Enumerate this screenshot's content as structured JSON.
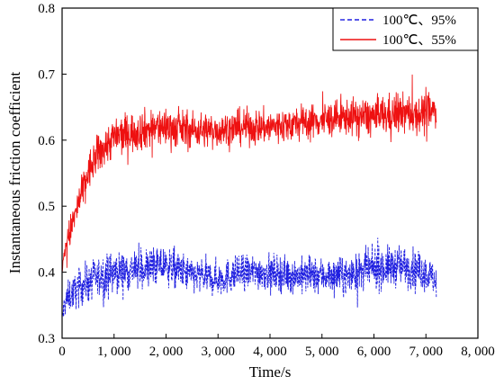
{
  "chart_data": {
    "type": "line",
    "xlabel": "Time/s",
    "ylabel": "Instantaneous friction coefficient",
    "xlim": [
      0,
      8000
    ],
    "ylim": [
      0.3,
      0.8
    ],
    "x_ticks": [
      "0",
      "1, 000",
      "2, 000",
      "3, 000",
      "4, 000",
      "5, 000",
      "6, 000",
      "7, 000",
      "8, 000"
    ],
    "y_ticks": [
      "0.3",
      "0.4",
      "0.5",
      "0.6",
      "0.7",
      "0.8"
    ],
    "grid": false,
    "legend_position": "top-right",
    "series": [
      {
        "name": "100℃、95%",
        "color": "#1f1fe0",
        "line_style": "dashed",
        "x": [
          0,
          60,
          150,
          300,
          500,
          800,
          1000,
          1500,
          2000,
          2500,
          3000,
          3500,
          4000,
          4500,
          5000,
          5500,
          6000,
          6500,
          7000,
          7200
        ],
        "y": [
          0.33,
          0.355,
          0.365,
          0.375,
          0.385,
          0.395,
          0.4,
          0.405,
          0.41,
          0.395,
          0.39,
          0.4,
          0.4,
          0.395,
          0.395,
          0.395,
          0.405,
          0.41,
          0.4,
          0.385
        ],
        "noise": [
          0.015,
          0.02,
          0.02,
          0.022,
          0.025,
          0.025,
          0.025,
          0.025,
          0.025,
          0.022,
          0.022,
          0.022,
          0.022,
          0.022,
          0.022,
          0.022,
          0.025,
          0.025,
          0.022,
          0.02
        ]
      },
      {
        "name": "100℃、55%",
        "color": "#ee1111",
        "line_style": "solid",
        "x": [
          0,
          60,
          150,
          300,
          500,
          700,
          1000,
          1500,
          2000,
          2500,
          3000,
          3500,
          4000,
          4500,
          5000,
          5500,
          6000,
          6500,
          7000,
          7200
        ],
        "y": [
          0.4,
          0.44,
          0.46,
          0.5,
          0.55,
          0.58,
          0.605,
          0.615,
          0.62,
          0.615,
          0.615,
          0.62,
          0.62,
          0.625,
          0.63,
          0.635,
          0.635,
          0.64,
          0.64,
          0.645
        ],
        "noise": [
          0.01,
          0.015,
          0.02,
          0.022,
          0.025,
          0.025,
          0.025,
          0.025,
          0.025,
          0.022,
          0.022,
          0.022,
          0.022,
          0.022,
          0.022,
          0.022,
          0.025,
          0.025,
          0.025,
          0.022
        ]
      }
    ]
  }
}
